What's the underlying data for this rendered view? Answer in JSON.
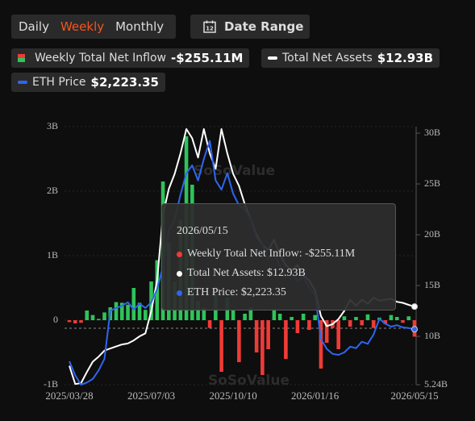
{
  "controls": {
    "periods": [
      "Daily",
      "Weekly",
      "Monthly"
    ],
    "date_range": "Date Range"
  },
  "chart_data": {
    "type": "combo",
    "categories": [
      "2025/03/28",
      null,
      null,
      null,
      null,
      null,
      null,
      null,
      null,
      null,
      null,
      null,
      null,
      null,
      "2025/07/03",
      null,
      null,
      null,
      null,
      null,
      null,
      null,
      null,
      null,
      null,
      null,
      null,
      null,
      "2025/10/10",
      null,
      null,
      null,
      null,
      null,
      null,
      null,
      null,
      null,
      null,
      null,
      null,
      null,
      "2026/01/16",
      null,
      null,
      null,
      null,
      null,
      null,
      null,
      null,
      null,
      null,
      null,
      null,
      null,
      null,
      null,
      null,
      "2026/05/15"
    ],
    "series": [
      {
        "name": "Weekly Total Net Inflow",
        "type": "bar",
        "color": "#2fc35a",
        "negative_color": "#ef3b36",
        "current_label": "-$255.11M",
        "values": [
          -0.03,
          -0.05,
          -0.04,
          0.15,
          0.08,
          0.02,
          0.12,
          0.2,
          0.28,
          0.27,
          0.24,
          0.5,
          0.27,
          0.16,
          0.6,
          0.93,
          2.15,
          1.2,
          0.6,
          1.55,
          2.85,
          2.1,
          0.3,
          0.2,
          -0.12,
          0.4,
          -0.8,
          0.35,
          0.15,
          -0.65,
          0.1,
          0.2,
          -0.5,
          -0.85,
          -0.45,
          0.18,
          0.1,
          -0.6,
          0.05,
          -0.2,
          0.1,
          -0.15,
          0.08,
          -0.75,
          -0.35,
          -0.12,
          -0.45,
          0.06,
          -0.1,
          0.05,
          -0.08,
          0.09,
          -0.12,
          0.04,
          -0.06,
          0.08,
          0.05,
          -0.04,
          0.06,
          -0.25511
        ]
      },
      {
        "name": "Total Net Assets",
        "type": "line",
        "axis": "y2",
        "color": "#ffffff",
        "current_label": "$12.93B",
        "values": [
          7.1,
          5.3,
          5.4,
          6.5,
          7.5,
          8.0,
          8.6,
          8.8,
          9.0,
          9.2,
          9.3,
          9.6,
          10.0,
          10.3,
          12.5,
          15.5,
          22.0,
          24.5,
          26.0,
          28.0,
          30.4,
          29.5,
          27.6,
          30.4,
          28.0,
          26.5,
          30.4,
          28.0,
          26.0,
          24.8,
          23.0,
          21.5,
          20.0,
          19.0,
          18.5,
          19.5,
          18.0,
          17.0,
          16.5,
          17.0,
          16.0,
          15.5,
          14.5,
          12.0,
          11.0,
          11.2,
          11.7,
          12.5,
          13.6,
          13.0,
          13.6,
          13.2,
          13.8,
          13.5,
          13.6,
          13.7,
          13.4,
          13.3,
          13.1,
          12.93
        ]
      },
      {
        "name": "ETH Price",
        "type": "line",
        "axis": "y3",
        "color": "#2f66f0",
        "current_label": "$2,223.35",
        "values": [
          1776,
          1580,
          1450,
          1480,
          1530,
          1650,
          1810,
          2480,
          2520,
          2550,
          2600,
          2500,
          2580,
          2520,
          2600,
          2780,
          3100,
          3600,
          3750,
          4100,
          4400,
          4510,
          4300,
          4600,
          4850,
          4300,
          4170,
          4400,
          4115,
          3950,
          3900,
          3750,
          3500,
          3400,
          3200,
          3300,
          3100,
          2950,
          3000,
          2900,
          2950,
          2800,
          2700,
          2090,
          1950,
          1880,
          1866,
          1900,
          1980,
          1960,
          2050,
          2020,
          2150,
          2370,
          2300,
          2260,
          2280,
          2250,
          2240,
          2223.35
        ]
      }
    ],
    "ylim": [
      -1,
      3
    ],
    "yticks": [
      {
        "value": -1,
        "label": "-1B"
      },
      0,
      {
        "value": 1,
        "label": "1B"
      },
      {
        "value": 2,
        "label": "2B"
      },
      {
        "value": 3,
        "label": "3B"
      }
    ],
    "y2lim": [
      5.24,
      30.64
    ],
    "y2ticks": [
      {
        "value": 5.24,
        "label": "5.24B"
      },
      {
        "value": 10,
        "label": "10B"
      },
      {
        "value": 15,
        "label": "15B"
      },
      {
        "value": 20,
        "label": "20B"
      },
      {
        "value": 25,
        "label": "25B"
      },
      {
        "value": 30,
        "label": "30B"
      }
    ],
    "y3lim": [
      1450,
      5050
    ],
    "grid": true,
    "watermark": "SoSoValue",
    "tooltip": {
      "items": [
        "Weekly Total Net Inflow: -$255.11M",
        "Total Net Assets: $12.93B",
        "ETH Price: $2,223.35"
      ]
    }
  }
}
